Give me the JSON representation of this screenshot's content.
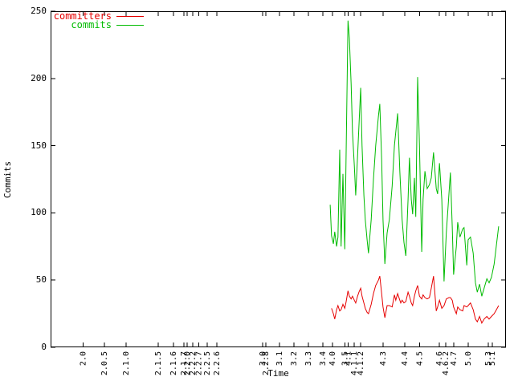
{
  "chart_data": {
    "type": "line",
    "title": "",
    "xlabel": "Time",
    "ylabel": "Commits",
    "ylim": [
      0,
      250
    ],
    "yticks": [
      0,
      50,
      100,
      150,
      200,
      250
    ],
    "grid": false,
    "legend_position": "top-left",
    "x_unit": "percent-of-axis (x axis is time; ticks mark version releases)",
    "xticks": [
      {
        "label": "2.0",
        "pos_pct": 7.1
      },
      {
        "label": "2.0.5",
        "pos_pct": 11.8
      },
      {
        "label": "2.1.0",
        "pos_pct": 16.6
      },
      {
        "label": "2.1.5",
        "pos_pct": 23.6
      },
      {
        "label": "2.1.6",
        "pos_pct": 27.0
      },
      {
        "label": "2.1.7",
        "pos_pct": 29.3
      },
      {
        "label": "2.2.0",
        "pos_pct": 30.0
      },
      {
        "label": "2.2.2",
        "pos_pct": 31.2
      },
      {
        "label": "2.2.7",
        "pos_pct": 32.5
      },
      {
        "label": "2.2.5",
        "pos_pct": 34.4
      },
      {
        "label": "2.2.6",
        "pos_pct": 36.5
      },
      {
        "label": "3.0",
        "pos_pct": 46.6
      },
      {
        "label": "2.2.8",
        "pos_pct": 47.3
      },
      {
        "label": "3.1",
        "pos_pct": 50.3
      },
      {
        "label": "3.2",
        "pos_pct": 53.4
      },
      {
        "label": "3.3",
        "pos_pct": 56.6
      },
      {
        "label": "3.4",
        "pos_pct": 59.8
      },
      {
        "label": "4.0",
        "pos_pct": 61.9
      },
      {
        "label": "3.5",
        "pos_pct": 64.6
      },
      {
        "label": "4.1",
        "pos_pct": 65.3
      },
      {
        "label": "4.1.1",
        "pos_pct": 66.7
      },
      {
        "label": "4.1.2",
        "pos_pct": 68.1
      },
      {
        "label": "4.3",
        "pos_pct": 73.0
      },
      {
        "label": "4.4",
        "pos_pct": 77.8
      },
      {
        "label": "4.5",
        "pos_pct": 81.0
      },
      {
        "label": "4.6",
        "pos_pct": 85.4
      },
      {
        "label": "4.6.2",
        "pos_pct": 86.8
      },
      {
        "label": "4.7",
        "pos_pct": 88.5
      },
      {
        "label": "5.0",
        "pos_pct": 91.7
      },
      {
        "label": "5.3",
        "pos_pct": 96.1
      },
      {
        "label": "5.1",
        "pos_pct": 97.0
      }
    ],
    "series": [
      {
        "name": "committers",
        "color": "#e60000",
        "points": [
          [
            61.7,
            29
          ],
          [
            62.1,
            25
          ],
          [
            62.4,
            21
          ],
          [
            62.8,
            28
          ],
          [
            63.1,
            31
          ],
          [
            63.5,
            27
          ],
          [
            63.8,
            28
          ],
          [
            64.2,
            32
          ],
          [
            64.6,
            29
          ],
          [
            64.9,
            34
          ],
          [
            65.3,
            42
          ],
          [
            65.6,
            38
          ],
          [
            66.0,
            36
          ],
          [
            66.3,
            38
          ],
          [
            66.7,
            35
          ],
          [
            67.0,
            33
          ],
          [
            67.4,
            38
          ],
          [
            67.7,
            41
          ],
          [
            68.1,
            44
          ],
          [
            68.4,
            38
          ],
          [
            68.8,
            33
          ],
          [
            69.1,
            29
          ],
          [
            69.5,
            26
          ],
          [
            69.8,
            25
          ],
          [
            70.4,
            32
          ],
          [
            70.9,
            40
          ],
          [
            71.4,
            46
          ],
          [
            72.0,
            50
          ],
          [
            72.3,
            53
          ],
          [
            72.7,
            40
          ],
          [
            73.0,
            30
          ],
          [
            73.4,
            22
          ],
          [
            73.9,
            31
          ],
          [
            74.4,
            31
          ],
          [
            75.0,
            30
          ],
          [
            75.5,
            39
          ],
          [
            75.8,
            35
          ],
          [
            76.2,
            40
          ],
          [
            76.6,
            36
          ],
          [
            76.9,
            33
          ],
          [
            77.2,
            35
          ],
          [
            77.6,
            33
          ],
          [
            78.0,
            34
          ],
          [
            78.5,
            41
          ],
          [
            78.8,
            38
          ],
          [
            79.2,
            33
          ],
          [
            79.5,
            31
          ],
          [
            79.9,
            38
          ],
          [
            80.2,
            42
          ],
          [
            80.6,
            46
          ],
          [
            81.0,
            38
          ],
          [
            81.5,
            36
          ],
          [
            81.8,
            39
          ],
          [
            82.2,
            37
          ],
          [
            82.7,
            36
          ],
          [
            83.2,
            37
          ],
          [
            83.6,
            44
          ],
          [
            84.1,
            53
          ],
          [
            84.7,
            27
          ],
          [
            85.0,
            30
          ],
          [
            85.4,
            35
          ],
          [
            85.9,
            29
          ],
          [
            86.4,
            31
          ],
          [
            86.9,
            36
          ],
          [
            87.5,
            37
          ],
          [
            87.8,
            37
          ],
          [
            88.2,
            35
          ],
          [
            88.5,
            30
          ],
          [
            89.1,
            25
          ],
          [
            89.4,
            30
          ],
          [
            89.9,
            28
          ],
          [
            90.5,
            27
          ],
          [
            90.8,
            31
          ],
          [
            91.4,
            30
          ],
          [
            91.7,
            31
          ],
          [
            92.2,
            33
          ],
          [
            92.8,
            28
          ],
          [
            93.3,
            21
          ],
          [
            93.7,
            19
          ],
          [
            94.2,
            23
          ],
          [
            94.7,
            18
          ],
          [
            95.2,
            21
          ],
          [
            95.8,
            23
          ],
          [
            96.3,
            21
          ],
          [
            96.8,
            23
          ],
          [
            97.4,
            25
          ],
          [
            97.9,
            28
          ],
          [
            98.4,
            31
          ]
        ]
      },
      {
        "name": "commits",
        "color": "#00bb00",
        "points": [
          [
            61.4,
            106
          ],
          [
            61.7,
            83
          ],
          [
            62.1,
            77
          ],
          [
            62.4,
            86
          ],
          [
            62.8,
            75
          ],
          [
            63.1,
            82
          ],
          [
            63.5,
            147
          ],
          [
            63.8,
            75
          ],
          [
            64.2,
            129
          ],
          [
            64.6,
            73
          ],
          [
            65.3,
            243
          ],
          [
            65.6,
            230
          ],
          [
            66.0,
            196
          ],
          [
            66.3,
            160
          ],
          [
            66.7,
            135
          ],
          [
            67.0,
            113
          ],
          [
            67.4,
            142
          ],
          [
            68.1,
            193
          ],
          [
            68.4,
            150
          ],
          [
            68.8,
            113
          ],
          [
            69.1,
            95
          ],
          [
            69.5,
            80
          ],
          [
            69.8,
            70
          ],
          [
            70.4,
            95
          ],
          [
            70.9,
            125
          ],
          [
            71.4,
            150
          ],
          [
            72.0,
            172
          ],
          [
            72.3,
            181
          ],
          [
            72.7,
            140
          ],
          [
            73.0,
            95
          ],
          [
            73.4,
            62
          ],
          [
            73.9,
            85
          ],
          [
            74.4,
            95
          ],
          [
            75.0,
            120
          ],
          [
            75.5,
            150
          ],
          [
            76.2,
            174
          ],
          [
            76.7,
            130
          ],
          [
            77.2,
            95
          ],
          [
            77.6,
            78
          ],
          [
            78.0,
            68
          ],
          [
            78.5,
            110
          ],
          [
            78.8,
            141
          ],
          [
            79.2,
            110
          ],
          [
            79.5,
            99
          ],
          [
            79.9,
            126
          ],
          [
            80.2,
            97
          ],
          [
            80.6,
            201
          ],
          [
            81.0,
            150
          ],
          [
            81.5,
            71
          ],
          [
            81.8,
            110
          ],
          [
            82.2,
            131
          ],
          [
            82.7,
            118
          ],
          [
            83.2,
            121
          ],
          [
            83.6,
            126
          ],
          [
            84.1,
            145
          ],
          [
            84.7,
            118
          ],
          [
            85.0,
            114
          ],
          [
            85.4,
            137
          ],
          [
            85.9,
            110
          ],
          [
            86.4,
            49
          ],
          [
            86.9,
            85
          ],
          [
            87.5,
            115
          ],
          [
            87.8,
            130
          ],
          [
            88.2,
            90
          ],
          [
            88.5,
            54
          ],
          [
            89.1,
            75
          ],
          [
            89.4,
            93
          ],
          [
            89.9,
            82
          ],
          [
            90.5,
            88
          ],
          [
            90.8,
            89
          ],
          [
            91.4,
            61
          ],
          [
            91.7,
            80
          ],
          [
            92.2,
            82
          ],
          [
            92.8,
            70
          ],
          [
            93.3,
            48
          ],
          [
            93.7,
            41
          ],
          [
            94.2,
            47
          ],
          [
            94.7,
            38
          ],
          [
            95.2,
            44
          ],
          [
            95.8,
            51
          ],
          [
            96.3,
            48
          ],
          [
            96.8,
            52
          ],
          [
            97.4,
            62
          ],
          [
            97.9,
            76
          ],
          [
            98.4,
            90
          ]
        ]
      }
    ]
  }
}
